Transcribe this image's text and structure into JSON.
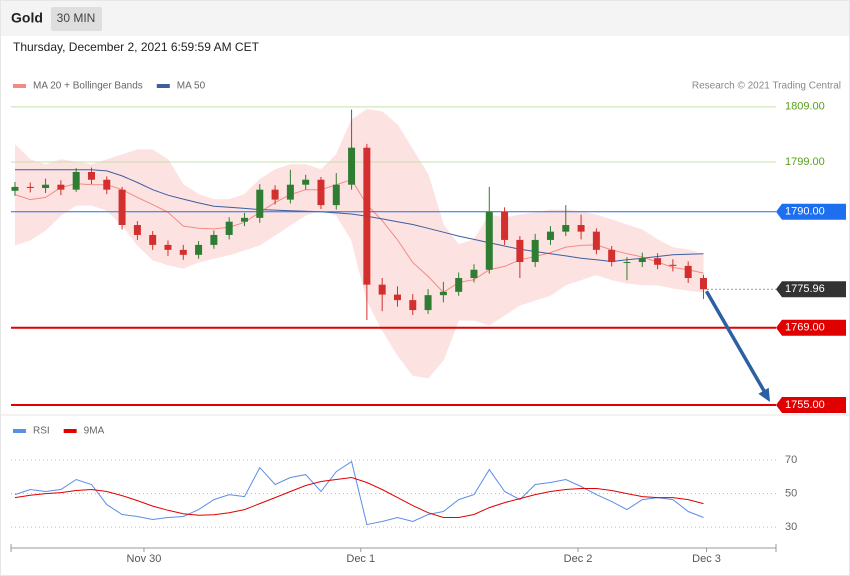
{
  "header": {
    "symbol": "Gold",
    "interval": "30 MIN",
    "timestamp": "Thursday, December 2, 2021 6:59:59 AM CET",
    "copyright": "Research © 2021 Trading Central"
  },
  "chart_data": [
    {
      "type": "candlestick",
      "x": [
        0,
        1,
        2,
        3,
        4,
        5,
        6,
        7,
        8,
        9,
        10,
        11,
        12,
        13,
        14,
        15,
        16,
        17,
        18,
        19,
        20,
        21,
        22,
        23,
        24,
        25,
        26,
        27,
        28,
        29,
        30,
        31,
        32,
        33,
        34,
        35,
        36,
        37,
        38,
        39,
        40,
        41,
        42,
        43,
        44,
        45
      ],
      "open": [
        1793.8,
        1794.5,
        1794.3,
        1794.9,
        1794.0,
        1797.2,
        1795.8,
        1794.0,
        1787.6,
        1785.8,
        1784.0,
        1783.1,
        1782.2,
        1784.0,
        1785.8,
        1788.2,
        1788.9,
        1794.0,
        1792.2,
        1794.9,
        1795.8,
        1791.2,
        1794.9,
        1801.6,
        1776.8,
        1775.0,
        1774.0,
        1772.2,
        1774.9,
        1775.5,
        1778.0,
        1779.5,
        1790.0,
        1784.9,
        1780.9,
        1784.9,
        1786.4,
        1787.6,
        1786.4,
        1783.1,
        1780.9,
        1780.9,
        1781.6,
        1780.4,
        1780.2,
        1778.0
      ],
      "high": [
        1795.4,
        1795.3,
        1796.0,
        1795.7,
        1797.9,
        1798.0,
        1796.4,
        1794.5,
        1788.3,
        1786.5,
        1784.8,
        1784.0,
        1784.7,
        1786.6,
        1789.0,
        1789.8,
        1795.0,
        1794.8,
        1797.6,
        1796.7,
        1796.3,
        1797.0,
        1808.5,
        1802.3,
        1778.0,
        1776.5,
        1775.1,
        1776.0,
        1777.3,
        1779.0,
        1780.5,
        1794.5,
        1790.8,
        1785.6,
        1786.0,
        1787.4,
        1791.2,
        1789.5,
        1787.0,
        1783.8,
        1781.8,
        1782.6,
        1782.5,
        1781.4,
        1781.0,
        1778.6
      ],
      "low": [
        1792.9,
        1793.5,
        1793.4,
        1793.0,
        1793.6,
        1795.0,
        1793.2,
        1786.8,
        1784.9,
        1783.1,
        1782.0,
        1781.3,
        1781.5,
        1783.3,
        1785.0,
        1787.4,
        1788.0,
        1791.3,
        1791.5,
        1794.0,
        1790.5,
        1790.4,
        1794.0,
        1770.4,
        1772.0,
        1772.8,
        1771.3,
        1771.5,
        1773.6,
        1774.8,
        1777.2,
        1778.8,
        1784.0,
        1778.0,
        1780.0,
        1784.0,
        1785.6,
        1785.0,
        1782.3,
        1780.1,
        1777.6,
        1780.0,
        1779.6,
        1779.2,
        1777.1,
        1774.2
      ],
      "close": [
        1794.5,
        1794.3,
        1794.9,
        1794.0,
        1797.2,
        1795.8,
        1794.0,
        1787.6,
        1785.8,
        1784.0,
        1783.1,
        1782.2,
        1784.0,
        1785.8,
        1788.2,
        1788.9,
        1794.0,
        1792.2,
        1794.9,
        1795.8,
        1791.2,
        1794.9,
        1801.6,
        1776.8,
        1775.0,
        1774.0,
        1772.2,
        1774.9,
        1775.5,
        1778.0,
        1779.5,
        1790.0,
        1784.9,
        1780.9,
        1784.9,
        1786.4,
        1787.6,
        1786.4,
        1783.1,
        1780.9,
        1780.9,
        1781.6,
        1780.4,
        1780.2,
        1778.0,
        1775.96
      ],
      "up_color": "#2e7d32",
      "down_color": "#d32f2f",
      "series": [
        {
          "name": "MA 20 + Bollinger Bands",
          "color": "#f28b82",
          "band_color": "#fde2e2",
          "values": [
            1793.1,
            1792.2,
            1792.6,
            1794.4,
            1795.1,
            1794.9,
            1794.9,
            1794.0,
            1792.6,
            1791.3,
            1789.9,
            1787.4,
            1787.0,
            1786.9,
            1787.2,
            1788.1,
            1789.9,
            1791.7,
            1793.1,
            1794.0,
            1794.0,
            1794.9,
            1795.8,
            1791.3,
            1788.4,
            1784.9,
            1780.8,
            1778.3,
            1775.4,
            1777.2,
            1777.7,
            1779.5,
            1780.1,
            1781.3,
            1781.9,
            1782.6,
            1783.6,
            1783.9,
            1784.0,
            1783.1,
            1782.4,
            1781.8,
            1780.9,
            1779.9,
            1779.5,
            1778.9
          ],
          "upper": [
            1802.1,
            1799.4,
            1798.5,
            1799.4,
            1799.0,
            1798.5,
            1799.4,
            1800.3,
            1801.2,
            1801.2,
            1799.4,
            1794.9,
            1793.1,
            1792.2,
            1792.2,
            1793.1,
            1795.8,
            1797.6,
            1798.5,
            1798.5,
            1797.6,
            1800.3,
            1806.6,
            1808.5,
            1808.1,
            1805.7,
            1801.2,
            1796.7,
            1787.6,
            1784.0,
            1784.9,
            1789.4,
            1788.9,
            1789.4,
            1789.8,
            1790.3,
            1790.3,
            1790.0,
            1789.4,
            1788.5,
            1787.6,
            1786.7,
            1784.9,
            1783.5,
            1783.1,
            1782.2
          ],
          "lower": [
            1784.0,
            1784.9,
            1786.7,
            1789.4,
            1791.2,
            1791.2,
            1790.3,
            1787.6,
            1784.0,
            1781.3,
            1780.4,
            1779.8,
            1780.9,
            1781.6,
            1782.2,
            1783.1,
            1784.0,
            1785.8,
            1787.6,
            1789.4,
            1790.3,
            1789.4,
            1784.9,
            1774.0,
            1768.6,
            1764.1,
            1760.4,
            1759.9,
            1763.2,
            1770.4,
            1770.4,
            1769.5,
            1771.3,
            1773.1,
            1774.0,
            1774.9,
            1776.8,
            1777.7,
            1778.6,
            1777.7,
            1777.1,
            1776.8,
            1776.8,
            1776.2,
            1775.8,
            1775.5
          ]
        },
        {
          "name": "MA 50",
          "color": "#3d5f9e",
          "values": [
            1797.6,
            1797.6,
            1797.6,
            1797.6,
            1797.6,
            1797.6,
            1797.4,
            1796.5,
            1795.3,
            1794.0,
            1793.0,
            1792.3,
            1791.6,
            1791.0,
            1790.8,
            1790.6,
            1790.4,
            1790.3,
            1790.2,
            1790.1,
            1790.0,
            1789.8,
            1789.6,
            1789.2,
            1788.7,
            1788.2,
            1787.7,
            1787.0,
            1786.3,
            1785.6,
            1785.0,
            1784.4,
            1783.8,
            1783.2,
            1782.8,
            1782.4,
            1782.0,
            1781.6,
            1781.3,
            1781.0,
            1781.3,
            1781.6,
            1781.9,
            1782.2,
            1782.3,
            1782.4
          ]
        }
      ],
      "levels": [
        {
          "value": 1809,
          "label": "1809.00",
          "color": "#5a9e1b",
          "line_color": "#c5e0ad",
          "style": "plain",
          "width": 1
        },
        {
          "value": 1799,
          "label": "1799.00",
          "color": "#5a9e1b",
          "line_color": "#c5e0ad",
          "style": "plain",
          "width": 1
        },
        {
          "value": 1790,
          "label": "1790.00",
          "color": "#1e6ff0",
          "line_color": "#1e6ff0",
          "style": "tag",
          "width": 1
        },
        {
          "value": 1775.96,
          "label": "1775.96",
          "color": "#333333",
          "line_color": "#333333",
          "style": "tag",
          "width": 1,
          "dotted": true
        },
        {
          "value": 1769,
          "label": "1769.00",
          "color": "#e00000",
          "line_color": "#e00000",
          "style": "tag",
          "width": 2
        },
        {
          "value": 1755,
          "label": "1755.00",
          "color": "#e00000",
          "line_color": "#e00000",
          "style": "tag",
          "width": 2
        }
      ],
      "arrow_color": "#2f5fa3",
      "xlim": [
        -0.26,
        49.74
      ],
      "ylim": [
        1753.2,
        1821.1
      ]
    },
    {
      "type": "line",
      "x": [
        0,
        1,
        2,
        3,
        4,
        5,
        6,
        7,
        8,
        9,
        10,
        11,
        12,
        13,
        14,
        15,
        16,
        17,
        18,
        19,
        20,
        21,
        22,
        23,
        24,
        25,
        26,
        27,
        28,
        29,
        30,
        31,
        32,
        33,
        34,
        35,
        36,
        37,
        38,
        39,
        40,
        41,
        42,
        43,
        44,
        45
      ],
      "series": [
        {
          "name": "RSI",
          "color": "#5b8ee6",
          "values": [
            49.4,
            52.4,
            51.2,
            52.4,
            58.4,
            55.4,
            43.4,
            37.5,
            36.3,
            34.5,
            35.7,
            36.3,
            40.4,
            46.4,
            49.4,
            48.2,
            65.5,
            55.4,
            59.6,
            61.3,
            51.2,
            63.1,
            69.1,
            31.5,
            33.3,
            35.7,
            33.3,
            37.5,
            39.3,
            46.4,
            49.4,
            64.3,
            51.2,
            46.4,
            55.4,
            56.6,
            58.4,
            54.2,
            49.4,
            45.2,
            40.4,
            46.4,
            47.6,
            46.4,
            39.3,
            35.7
          ]
        },
        {
          "name": "9MA",
          "color": "#e00000",
          "values": [
            47.6,
            49.0,
            50.0,
            50.6,
            51.8,
            52.4,
            51.2,
            48.8,
            45.8,
            42.5,
            40.0,
            38.0,
            37.1,
            37.3,
            38.6,
            40.4,
            44.0,
            47.6,
            51.2,
            54.8,
            57.2,
            58.4,
            59.6,
            56.6,
            52.4,
            47.6,
            42.8,
            38.6,
            35.7,
            35.7,
            37.5,
            41.6,
            44.6,
            47.0,
            49.4,
            51.2,
            52.4,
            53.0,
            53.0,
            51.8,
            50.0,
            48.2,
            47.6,
            47.6,
            46.4,
            44.0
          ]
        }
      ],
      "xlim": [
        -0.26,
        49.74
      ],
      "ylim": [
        19.3,
        93.9
      ],
      "yticks": [
        70,
        50,
        30
      ],
      "grid": true,
      "xticks": [
        {
          "value": 8.43,
          "label": "Nov 30"
        },
        {
          "value": 22.6,
          "label": "Dec 1"
        },
        {
          "value": 36.8,
          "label": "Dec 2"
        },
        {
          "value": 45.2,
          "label": "Dec 3"
        }
      ]
    }
  ]
}
